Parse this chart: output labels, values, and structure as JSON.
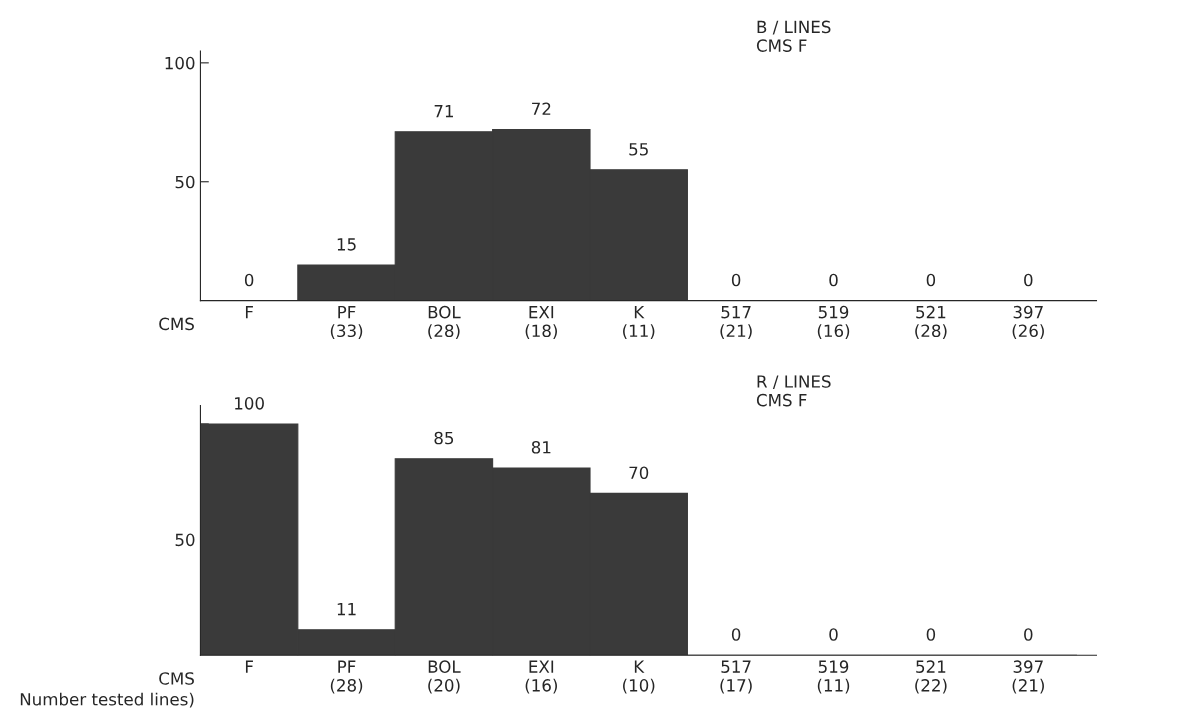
{
  "chart_data": [
    {
      "type": "bar",
      "title": "B / LINES\nCMS F",
      "categories": [
        "F",
        "PF\n(33)",
        "BOL\n(28)",
        "EXI\n(18)",
        "K\n(11)",
        "517\n(21)",
        "519\n(16)",
        "521\n(28)",
        "397\n(26)"
      ],
      "values": [
        0,
        15,
        71,
        72,
        55,
        0,
        0,
        0,
        0
      ],
      "color": "#3a3a3a",
      "ylim": [
        0,
        105
      ],
      "yticks": [
        50,
        100
      ],
      "data_labels": true,
      "grid": false,
      "legend": false,
      "annotations": [
        "CMS"
      ]
    },
    {
      "type": "bar",
      "title": "R / LINES\nCMS F",
      "categories": [
        "F",
        "PF\n(28)",
        "BOL\n(20)",
        "EXI\n(16)",
        "K\n(10)",
        "517\n(17)",
        "519\n(11)",
        "521\n(22)",
        "397\n(21)"
      ],
      "values": [
        100,
        11,
        85,
        81,
        70,
        0,
        0,
        0,
        0
      ],
      "color": "#3a3a3a",
      "ylim": [
        0,
        108
      ],
      "yticks": [
        50,
        {
          "value": 100,
          "label": null
        }
      ],
      "data_labels": true,
      "grid": false,
      "legend": false,
      "annotations": [
        "CMS",
        "Number tested lines)"
      ]
    }
  ]
}
